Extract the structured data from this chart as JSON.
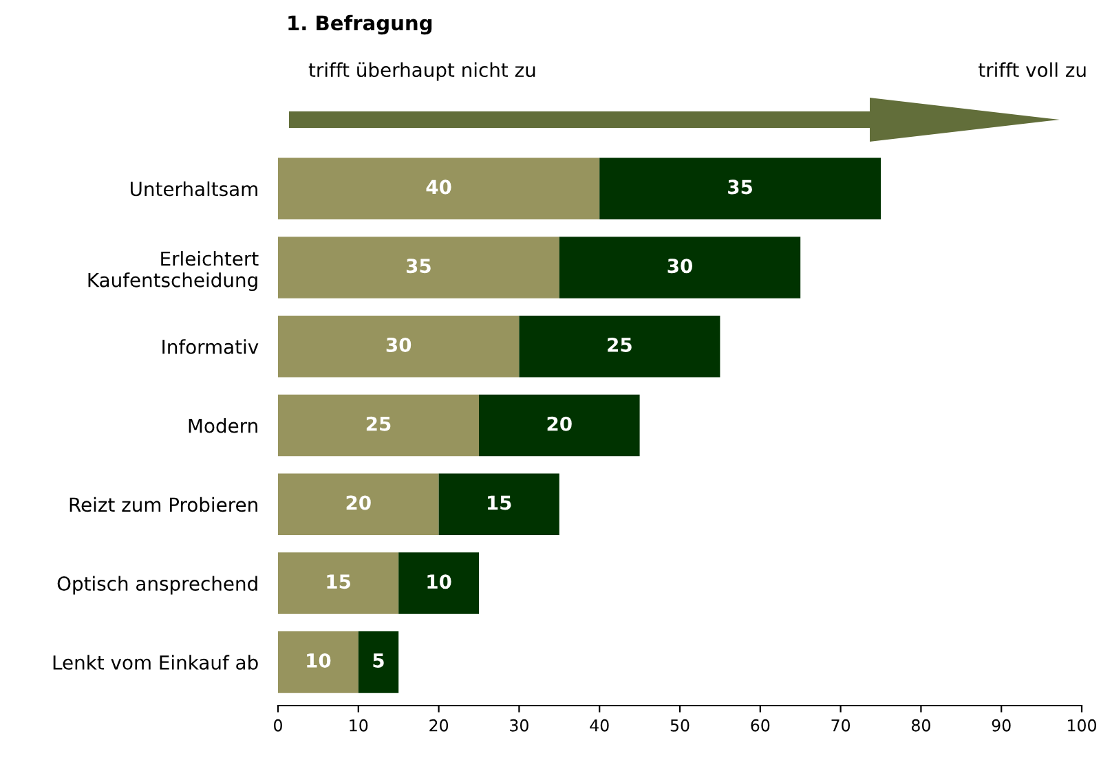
{
  "chart_data": {
    "type": "bar",
    "orientation": "horizontal",
    "stacked": true,
    "title": "1. Befragung",
    "annotations": [
      "trifft überhaupt nicht zu",
      "trifft voll zu"
    ],
    "categories": [
      "Unterhaltsam",
      "Erleichtert\nKaufentscheidung",
      "Informativ",
      "Modern",
      "Reizt zum Probieren",
      "Optisch ansprechend",
      "Lenkt vom Einkauf ab"
    ],
    "series": [
      {
        "color": "#97945e",
        "values": [
          40,
          35,
          30,
          25,
          20,
          15,
          10
        ]
      },
      {
        "color": "#003300",
        "values": [
          35,
          30,
          25,
          20,
          15,
          10,
          5
        ]
      }
    ],
    "xlim": [
      0,
      100
    ],
    "xticks": [
      0,
      10,
      20,
      30,
      40,
      50,
      60,
      70,
      80,
      90,
      100
    ],
    "data_labels": true,
    "grid": false,
    "legend": false
  }
}
